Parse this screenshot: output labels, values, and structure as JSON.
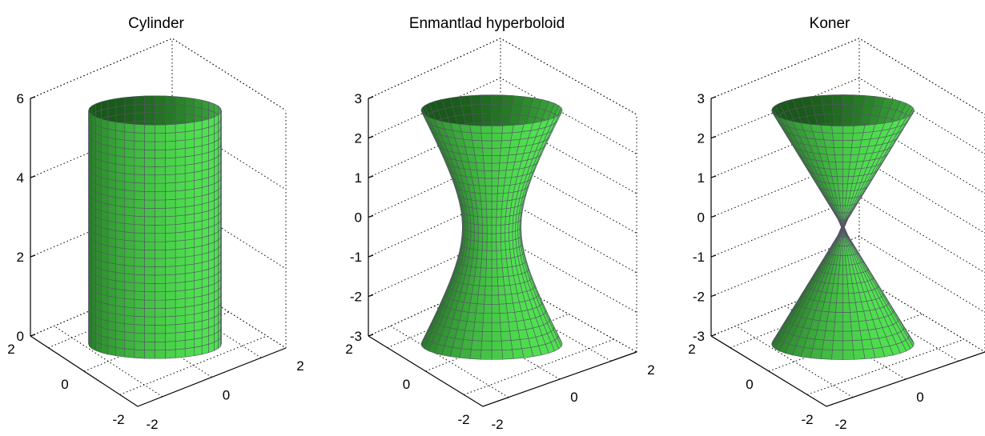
{
  "chart_data": [
    {
      "type": "surface3d",
      "title": "Cylinder",
      "surface": "cylinder",
      "equation": "x^2 + y^2 = 2^2",
      "radius": 2,
      "xlim": [
        -2,
        2
      ],
      "ylim": [
        -2,
        2
      ],
      "zlim": [
        0,
        6
      ],
      "xticks": [
        "-2",
        "0",
        "2"
      ],
      "yticks": [
        "-2",
        "0",
        "2"
      ],
      "zticks": [
        "0",
        "2",
        "4",
        "6"
      ],
      "grid": true,
      "colormap": "green"
    },
    {
      "type": "surface3d",
      "title": "Enmantlad hyperboloid",
      "surface": "hyperboloid-one-sheet",
      "equation": "x^2 + y^2 - z^2/4 = 1",
      "xlim": [
        -3,
        3
      ],
      "ylim": [
        -3,
        3
      ],
      "zlim": [
        -3,
        3
      ],
      "xticks": [
        "-2",
        "0",
        "2"
      ],
      "yticks": [
        "-2",
        "0",
        "2"
      ],
      "zticks": [
        "-3",
        "-2",
        "-1",
        "0",
        "1",
        "2",
        "3"
      ],
      "grid": true,
      "colormap": "green"
    },
    {
      "type": "surface3d",
      "title": "Koner",
      "surface": "double-cone",
      "equation": "x^2 + y^2 = z^2",
      "xlim": [
        -3,
        3
      ],
      "ylim": [
        -3,
        3
      ],
      "zlim": [
        -3,
        3
      ],
      "xticks": [
        "-2",
        "0",
        "2"
      ],
      "yticks": [
        "-2",
        "0",
        "2"
      ],
      "zticks": [
        "-3",
        "-2",
        "-1",
        "0",
        "1",
        "2",
        "3"
      ],
      "grid": true,
      "colormap": "green"
    }
  ],
  "colors": {
    "surface_dark": "#0c3a0c",
    "surface_bright": "#5cff5c",
    "mesh": "#555566"
  }
}
